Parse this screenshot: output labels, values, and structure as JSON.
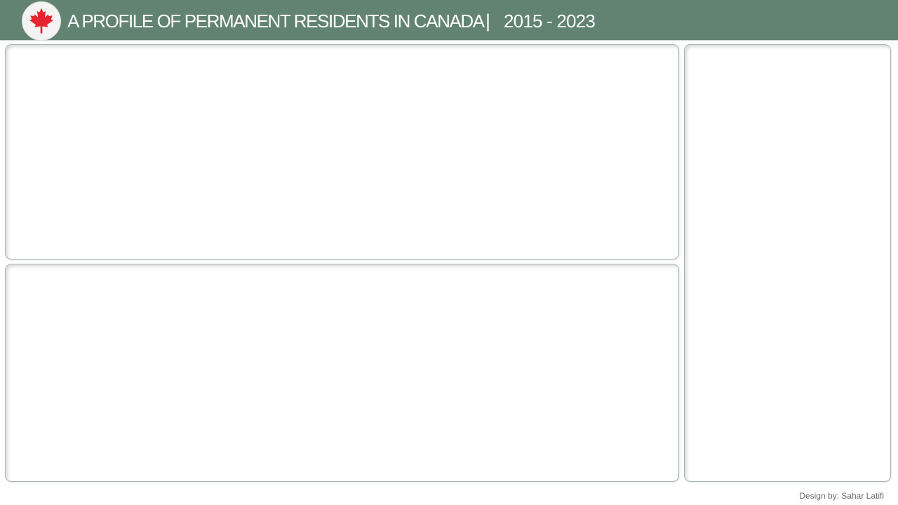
{
  "header": {
    "title": "A PROFILE OF PERMANENT RESIDENTS IN CANADA",
    "separator": "|",
    "years": "2015 - 2023",
    "logo_icon": "maple-leaf-icon",
    "background_color": "#628372",
    "leaf_color": "#e8232f"
  },
  "panels": [
    {
      "id": "top-left"
    },
    {
      "id": "bottom-left"
    },
    {
      "id": "right"
    }
  ],
  "footer": {
    "credit": "Design by: Sahar Latifi"
  }
}
